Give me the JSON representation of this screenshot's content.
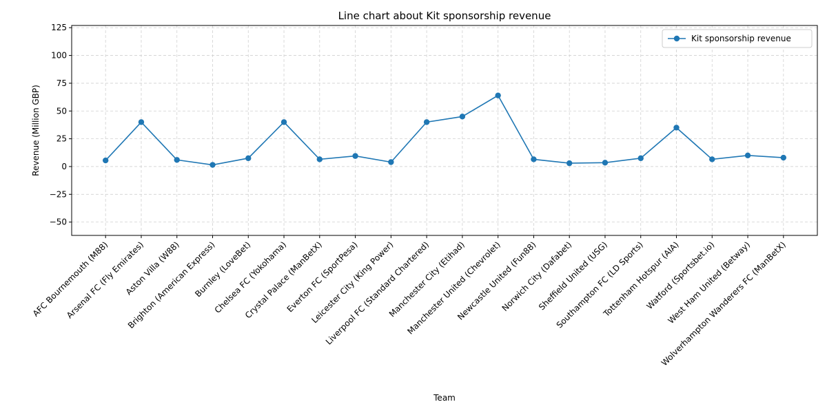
{
  "chart_data": {
    "type": "line",
    "title": "Line chart about Kit sponsorship revenue",
    "xlabel": "Team",
    "ylabel": "Revenue (Million GBP)",
    "categories": [
      "AFC Bournemouth (M88)",
      "Arsenal FC (Fly Emirates)",
      "Aston Villa (W88)",
      "Brighton (American Express)",
      "Burnley (LoveBet)",
      "Chelsea FC (Yokohama)",
      "Crystal Palace (ManBetX)",
      "Everton FC (SportPesa)",
      "Leicester City (King Power)",
      "Liverpool FC (Standard Chartered)",
      "Manchester City (Etihad)",
      "Manchester United (Chevrolet)",
      "Newcastle United (Fun88)",
      "Norwich City (Dafabet)",
      "Sheffield United (USG)",
      "Southampton FC (LD Sports)",
      "Tottenham Hotspur (AIA)",
      "Watford (Sportsbet.io)",
      "West Ham United (Betway)",
      "Wolverhampton Wanderers FC (ManBetX)"
    ],
    "series": [
      {
        "name": "Kit sponsorship revenue",
        "color": "#1f77b4",
        "values": [
          5.5,
          40,
          6,
          1.5,
          7.5,
          40,
          6.5,
          9.5,
          4,
          40,
          45,
          64,
          6.5,
          3,
          3.5,
          7.5,
          35,
          6.5,
          10,
          8
        ]
      }
    ],
    "ylim": [
      -62,
      127
    ],
    "yticks": [
      -50,
      -25,
      0,
      25,
      50,
      75,
      100,
      125
    ],
    "grid": true,
    "legend_position": "top-right"
  }
}
